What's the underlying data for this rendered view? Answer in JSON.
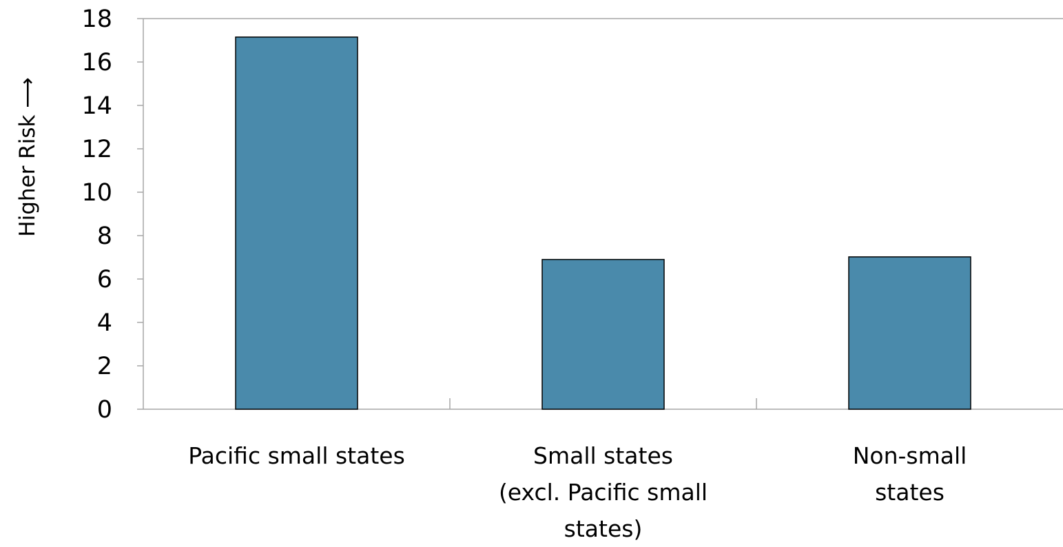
{
  "chart_data": {
    "type": "bar",
    "title": "",
    "xlabel": "",
    "ylabel": "Higher Risk",
    "ylabel_arrow": "⟶",
    "categories": [
      "Pacific small states",
      "Small states (excl. Pacific small states)",
      "Non-small states"
    ],
    "category_lines": [
      [
        "Pacific small states"
      ],
      [
        "Small states",
        "(excl. Pacific small",
        "states)"
      ],
      [
        "Non-small",
        "states"
      ]
    ],
    "values": [
      17.15,
      6.9,
      7.02
    ],
    "ylim": [
      0,
      18
    ],
    "yticks": [
      0,
      2,
      4,
      6,
      8,
      10,
      12,
      14,
      16,
      18
    ],
    "ytick_labels": [
      "0",
      "2",
      "4",
      "6",
      "8",
      "10",
      "12",
      "14",
      "16",
      "18"
    ],
    "grid": false,
    "legend": "none",
    "colors": {
      "bar": "#4a8aab",
      "bar_edge": "#000000",
      "axis": "#a6a6a6"
    }
  }
}
